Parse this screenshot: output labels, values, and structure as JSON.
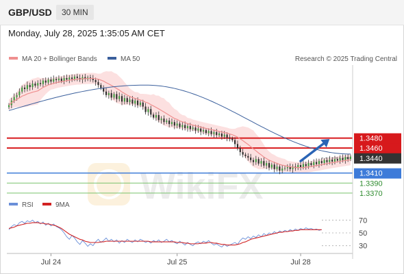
{
  "header": {
    "pair": "GBP/USD",
    "timeframe": "30 MIN"
  },
  "date_line": "Monday, July 28, 2025 1:35:05 AM CET",
  "credit": "Research © 2025 Trading Central",
  "watermark": "WikiFX",
  "colors": {
    "ma20": "#ef8f8f",
    "ma50": "#3a5f9c",
    "bands": "#fbdada",
    "resistance": "#d7191c",
    "support_main": "#3d7bd9",
    "support_minor": "#78c26b",
    "rsi": "#6a8fd8",
    "rsi_ma": "#d22222",
    "arrow": "#2a64b5",
    "price_tag": "#333333"
  },
  "chart_data": [
    {
      "type": "candlestick",
      "legend": [
        {
          "name": "MA 20 + Bollinger Bands",
          "color": "#ef8f8f"
        },
        {
          "name": "MA 50",
          "color": "#3a5f9c"
        }
      ],
      "ylim": [
        1.3352,
        1.3626
      ],
      "x_ticks": [
        {
          "label": "Jul 24",
          "i": 16
        },
        {
          "label": "Jul 25",
          "i": 64
        },
        {
          "label": "Jul 28",
          "i": 111
        }
      ],
      "x_range": [
        0,
        130
      ],
      "close_series": [
        1.3546,
        1.3555,
        1.3562,
        1.3566,
        1.3573,
        1.3581,
        1.3578,
        1.3586,
        1.3582,
        1.3589,
        1.3585,
        1.359,
        1.3588,
        1.3595,
        1.3591,
        1.3597,
        1.3593,
        1.3598,
        1.3596,
        1.3599,
        1.3594,
        1.36,
        1.3597,
        1.3601,
        1.3598,
        1.3603,
        1.36,
        1.3597,
        1.3602,
        1.3598,
        1.3601,
        1.3599,
        1.3596,
        1.3592,
        1.3586,
        1.358,
        1.3573,
        1.3566,
        1.357,
        1.3561,
        1.3568,
        1.3558,
        1.3564,
        1.3553,
        1.356,
        1.3552,
        1.3557,
        1.3549,
        1.3555,
        1.3546,
        1.3551,
        1.3543,
        1.3532,
        1.3538,
        1.3527,
        1.3521,
        1.3526,
        1.3516,
        1.3519,
        1.3512,
        1.3515,
        1.3508,
        1.3512,
        1.3505,
        1.3509,
        1.3502,
        1.3506,
        1.35,
        1.3504,
        1.3498,
        1.3501,
        1.3495,
        1.3499,
        1.3493,
        1.3496,
        1.349,
        1.3494,
        1.3488,
        1.3492,
        1.3486,
        1.3489,
        1.3483,
        1.3487,
        1.3481,
        1.3479,
        1.3476,
        1.3468,
        1.346,
        1.3452,
        1.3447,
        1.3444,
        1.3441,
        1.3436,
        1.3432,
        1.3438,
        1.3429,
        1.3434,
        1.3425,
        1.343,
        1.3421,
        1.3427,
        1.3418,
        1.3423,
        1.3415,
        1.3419,
        1.342,
        1.3422,
        1.3418,
        1.3423,
        1.342,
        1.3426,
        1.3422,
        1.3428,
        1.3424,
        1.343,
        1.3426,
        1.3432,
        1.3428,
        1.3434,
        1.343,
        1.3436,
        1.3432,
        1.3437,
        1.3433,
        1.3438,
        1.3435,
        1.344,
        1.3436,
        1.3442,
        1.3438,
        1.3443
      ],
      "ma50": {
        "start": 1.3535,
        "peak_at": 52,
        "peak": 1.3586,
        "end": 1.3448
      },
      "levels": [
        {
          "label": "1.3480",
          "value": 1.348,
          "role": "resistance"
        },
        {
          "label": "1.3460",
          "value": 1.346,
          "role": "resistance"
        },
        {
          "label": "1.3440",
          "value": 1.344,
          "role": "price"
        },
        {
          "label": "1.3410",
          "value": 1.341,
          "role": "support_main"
        },
        {
          "label": "1.3390",
          "value": 1.339,
          "role": "support_minor"
        },
        {
          "label": "1.3370",
          "value": 1.337,
          "role": "support_minor"
        }
      ],
      "forecast_arrow": {
        "from": [
          111,
          1.3434
        ],
        "to": [
          122,
          1.3478
        ]
      }
    },
    {
      "type": "line",
      "legend": [
        {
          "name": "RSI",
          "color": "#6a8fd8"
        },
        {
          "name": "9MA",
          "color": "#d22222"
        }
      ],
      "ylim": [
        20,
        80
      ],
      "y_ticks": [
        "70",
        "50",
        "30"
      ],
      "rsi": [
        55,
        60,
        63,
        61,
        66,
        68,
        65,
        69,
        67,
        70,
        66,
        68,
        64,
        67,
        62,
        65,
        61,
        64,
        60,
        58,
        55,
        50,
        44,
        40,
        46,
        42,
        36,
        32,
        38,
        34,
        29,
        33,
        30,
        36,
        40,
        35,
        38,
        42,
        37,
        40,
        36,
        39,
        34,
        38,
        35,
        40,
        37,
        35,
        39,
        36,
        40,
        38,
        35,
        37,
        34,
        38,
        36,
        39,
        35,
        37,
        40,
        36,
        38,
        35,
        33,
        37,
        34,
        31,
        35,
        32,
        30,
        34,
        36,
        33,
        37,
        35,
        38,
        34,
        31,
        33,
        30,
        28,
        32,
        29,
        31,
        33,
        35,
        32,
        38,
        42,
        40,
        44,
        41,
        45,
        43,
        47,
        44,
        49,
        46,
        50,
        48,
        52,
        49,
        53,
        51,
        54,
        52,
        55,
        53,
        56,
        54,
        57,
        55,
        58,
        56,
        57,
        55,
        56,
        54,
        55
      ],
      "rsi_ma": [
        57,
        58,
        59,
        61,
        62,
        63,
        64,
        65,
        65,
        66,
        66,
        66,
        65,
        65,
        64,
        64,
        63,
        62,
        61,
        59,
        57,
        54,
        51,
        48,
        46,
        44,
        42,
        40,
        39,
        37,
        36,
        35,
        35,
        35,
        35,
        36,
        36,
        37,
        37,
        37,
        37,
        37,
        37,
        37,
        37,
        37,
        37,
        37,
        37,
        37,
        37,
        37,
        37,
        37,
        36,
        36,
        36,
        36,
        36,
        36,
        36,
        36,
        36,
        36,
        35,
        35,
        35,
        34,
        34,
        33,
        33,
        33,
        33,
        34,
        34,
        34,
        35,
        35,
        34,
        34,
        33,
        32,
        32,
        31,
        31,
        31,
        31,
        32,
        33,
        35,
        36,
        38,
        40,
        41,
        42,
        43,
        44,
        45,
        46,
        47,
        48,
        49,
        50,
        51,
        51,
        52,
        52,
        53,
        53,
        54,
        54,
        55,
        55,
        55,
        55,
        55,
        55,
        55,
        55,
        55
      ]
    }
  ]
}
